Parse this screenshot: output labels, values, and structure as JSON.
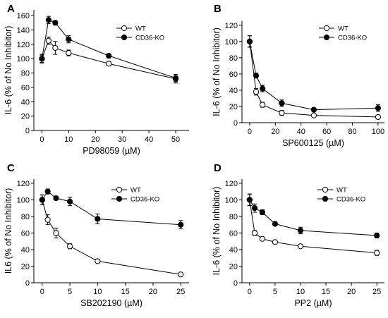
{
  "chart_data": [
    {
      "type": "line",
      "panel": "A",
      "xlabel": "PD98059 (µM)",
      "ylabel": "IL-6 (% of No Inhibitor)",
      "xlim": [
        -3,
        55
      ],
      "ylim": [
        0,
        168
      ],
      "xticks": [
        0,
        10,
        20,
        30,
        40,
        50
      ],
      "yticks": [
        0,
        20,
        40,
        60,
        80,
        100,
        120,
        140,
        160
      ],
      "legend_position": "top-right",
      "series": [
        {
          "name": "WT",
          "marker": "open",
          "x": [
            0,
            2.5,
            5,
            10,
            25,
            50
          ],
          "y": [
            100,
            125,
            115,
            108,
            93,
            72
          ],
          "err": [
            5,
            5,
            9,
            4,
            3,
            6
          ]
        },
        {
          "name": "CD36-KO",
          "marker": "filled",
          "x": [
            0,
            2.5,
            5,
            10,
            25,
            50
          ],
          "y": [
            100,
            154,
            150,
            127,
            104,
            73
          ],
          "err": [
            6,
            5,
            3,
            5,
            3,
            5
          ]
        }
      ]
    },
    {
      "type": "line",
      "panel": "B",
      "xlabel": "SP600125 (µM)",
      "ylabel": "IL-6 (% of No Inhibitor)",
      "xlim": [
        -6,
        105
      ],
      "ylim": [
        0,
        125
      ],
      "xticks": [
        0,
        20,
        40,
        60,
        80,
        100
      ],
      "yticks": [
        0,
        20,
        40,
        60,
        80,
        100,
        120
      ],
      "legend_position": "top-right",
      "series": [
        {
          "name": "WT",
          "marker": "open",
          "x": [
            0,
            5,
            10,
            25,
            50,
            100
          ],
          "y": [
            100,
            38,
            22,
            12,
            9,
            7
          ],
          "err": [
            7,
            4,
            3,
            3,
            2,
            2
          ]
        },
        {
          "name": "CD36-KO",
          "marker": "filled",
          "x": [
            0,
            5,
            10,
            25,
            50,
            100
          ],
          "y": [
            100,
            58,
            42,
            24,
            16,
            18
          ],
          "err": [
            7,
            3,
            4,
            4,
            2,
            4
          ]
        }
      ]
    },
    {
      "type": "line",
      "panel": "C",
      "xlabel": "SB202190 (µM)",
      "ylabel": "IL6 (% of No Inhibitor)",
      "xlim": [
        -1.5,
        26.5
      ],
      "ylim": [
        0,
        125
      ],
      "xticks": [
        0,
        5,
        10,
        15,
        20,
        25
      ],
      "yticks": [
        0,
        20,
        40,
        60,
        80,
        100,
        120
      ],
      "legend_position": "top-right",
      "series": [
        {
          "name": "WT",
          "marker": "open",
          "x": [
            0,
            1,
            2.5,
            5,
            10,
            25
          ],
          "y": [
            100,
            76,
            60,
            44,
            26,
            10
          ],
          "err": [
            6,
            6,
            6,
            3,
            2,
            2
          ]
        },
        {
          "name": "CD36-KO",
          "marker": "filled",
          "x": [
            0,
            1,
            2.5,
            5,
            10,
            25
          ],
          "y": [
            100,
            110,
            102,
            98,
            77,
            70
          ],
          "err": [
            6,
            3,
            2,
            5,
            6,
            5
          ]
        }
      ]
    },
    {
      "type": "line",
      "panel": "D",
      "xlabel": "PP2 (µM)",
      "ylabel": "IL-6 (% of No Inhibitor)",
      "xlim": [
        -1.5,
        26.5
      ],
      "ylim": [
        0,
        125
      ],
      "xticks": [
        0,
        5,
        10,
        15,
        20,
        25
      ],
      "yticks": [
        0,
        20,
        40,
        60,
        80,
        100,
        120
      ],
      "legend_position": "top-right",
      "series": [
        {
          "name": "WT",
          "marker": "open",
          "x": [
            0,
            1,
            2.5,
            5,
            10,
            25
          ],
          "y": [
            100,
            60,
            53,
            49,
            44,
            36
          ],
          "err": [
            7,
            3,
            2,
            2,
            2,
            3
          ]
        },
        {
          "name": "CD36-KO",
          "marker": "filled",
          "x": [
            0,
            1,
            2.5,
            5,
            10,
            25
          ],
          "y": [
            100,
            90,
            85,
            71,
            63,
            57
          ],
          "err": [
            7,
            5,
            3,
            2,
            4,
            3
          ]
        }
      ]
    }
  ]
}
